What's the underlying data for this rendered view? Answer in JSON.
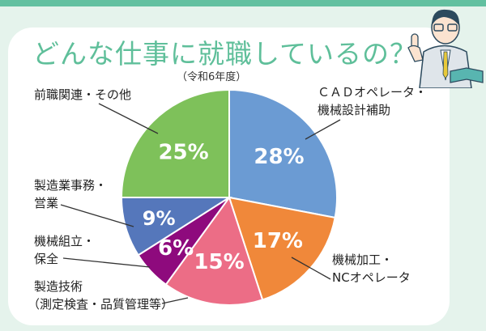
{
  "title": "どんな仕事に就職しているの？",
  "subtitle": "（令和6年度）",
  "chart_data": {
    "type": "pie",
    "title": "どんな仕事に就職しているの？",
    "subtitle": "（令和6年度）",
    "slices": [
      {
        "label": "CADオペレータ・機械設計補助",
        "value": 28,
        "text": "28%",
        "color": "#6b9bd3"
      },
      {
        "label": "機械加工・NCオペレータ",
        "value": 17,
        "text": "17%",
        "color": "#f0883a"
      },
      {
        "label": "製造技術（測定検査・品質管理等）",
        "value": 15,
        "text": "15%",
        "color": "#ec6d86"
      },
      {
        "label": "機械組立・保全",
        "value": 6,
        "text": "6%",
        "color": "#8e0a7d"
      },
      {
        "label": "製造業事務・営業",
        "value": 9,
        "text": "9%",
        "color": "#5577bb"
      },
      {
        "label": "前職関連・その他",
        "value": 25,
        "text": "25%",
        "color": "#7ec15a"
      }
    ]
  },
  "labels": {
    "cad": [
      "ＣＡＤオペレータ・",
      "機械設計補助"
    ],
    "nc": [
      "機械加工・",
      "NCオペレータ"
    ],
    "tech": [
      "製造技術",
      "（測定検査・品質管理等）"
    ],
    "assembly": [
      "機械組立・",
      "保全"
    ],
    "office": [
      "製造業事務・",
      "営業"
    ],
    "other": [
      "前職関連・その他"
    ]
  }
}
